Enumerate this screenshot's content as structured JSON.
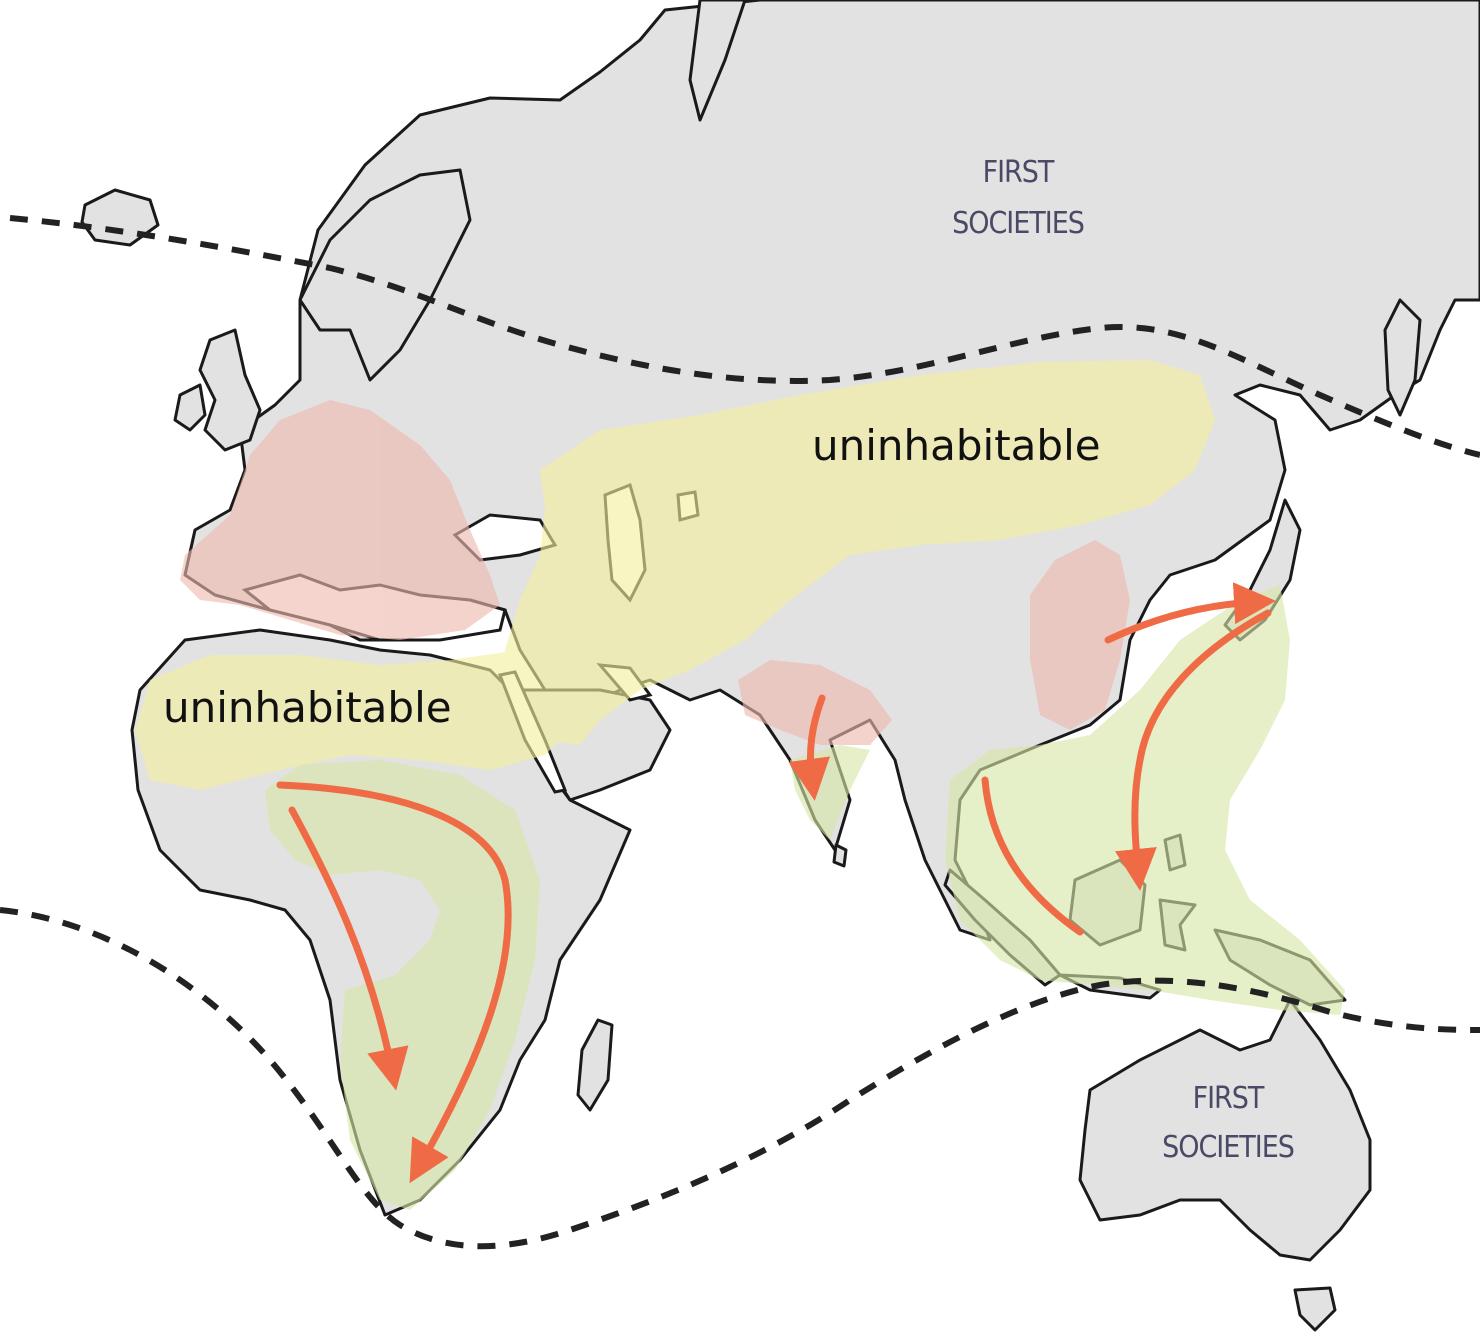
{
  "map": {
    "labels": {
      "uninhabitable_north": "uninhabitable",
      "uninhabitable_africa": "uninhabitable",
      "first_societies_north_line1": "FIRST",
      "first_societies_north_line2": "SOCIETIES",
      "first_societies_australia_line1": "FIRST",
      "first_societies_australia_line2": "SOCIETIES"
    },
    "colors": {
      "uninhabitable_zone": "#f3ef9c",
      "early_society_zone": "#efb9b0",
      "tropical_zone": "#d7e6a6",
      "migration_arrow": "#ef6b45",
      "land": "#e2e2e2",
      "coastline": "#1a1a1a",
      "boundary_line": "#222222"
    }
  }
}
